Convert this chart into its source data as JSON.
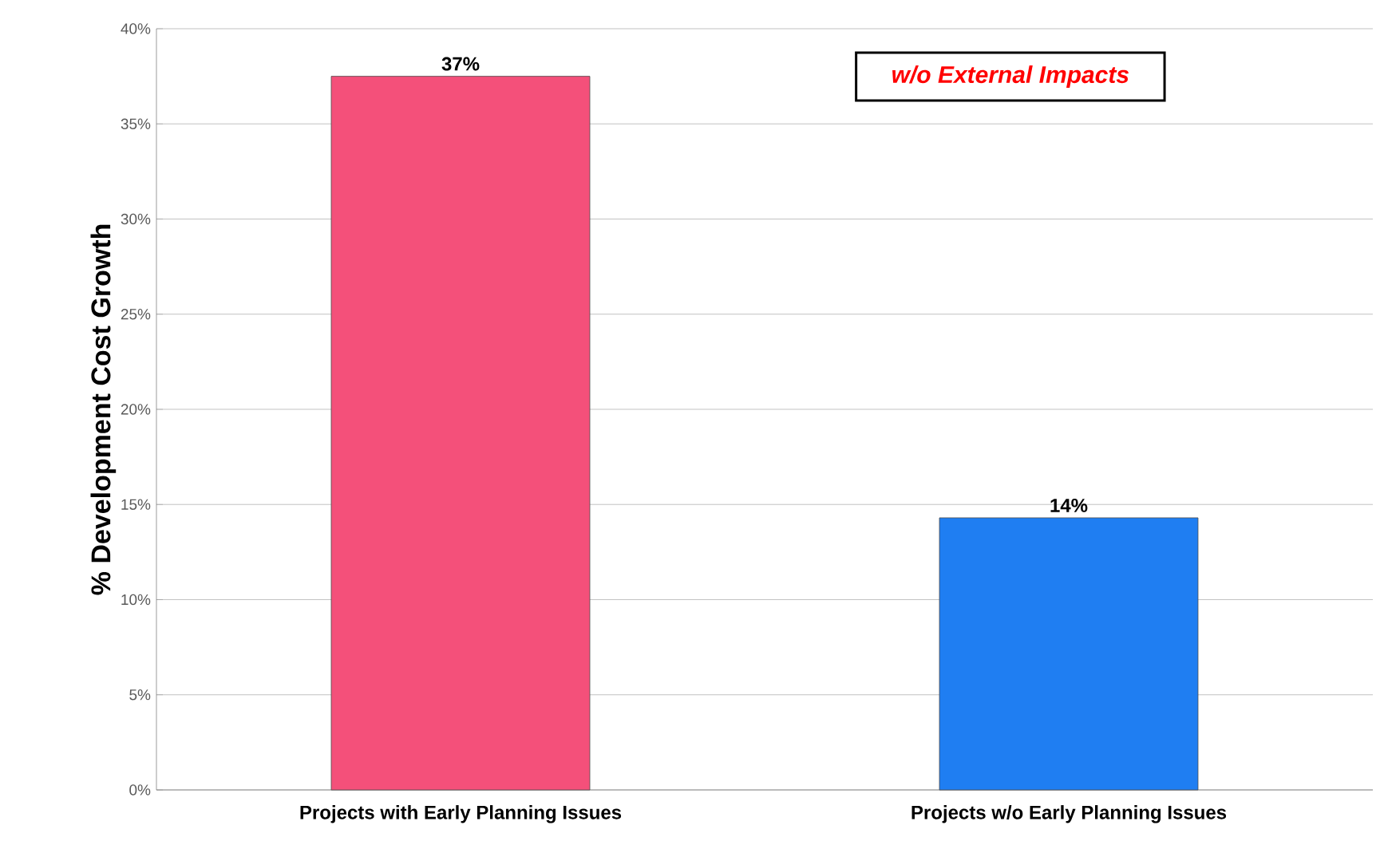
{
  "chart_data": {
    "type": "bar",
    "ylabel": "% Development Cost Growth",
    "categories": [
      "Projects with Early Planning Issues",
      "Projects w/o Early Planning Issues"
    ],
    "values": [
      37.5,
      14.3
    ],
    "value_labels": [
      "37%",
      "14%"
    ],
    "colors": [
      "#f4507a",
      "#1f7ef2"
    ],
    "ylim": [
      0,
      40
    ],
    "yticks": [
      {
        "value": 0,
        "label": "0%"
      },
      {
        "value": 5,
        "label": "5%"
      },
      {
        "value": 10,
        "label": "10%"
      },
      {
        "value": 15,
        "label": "15%"
      },
      {
        "value": 20,
        "label": "20%"
      },
      {
        "value": 25,
        "label": "25%"
      },
      {
        "value": 30,
        "label": "30%"
      },
      {
        "value": 35,
        "label": "35%"
      },
      {
        "value": 40,
        "label": "40%"
      }
    ],
    "grid": "y",
    "annotations": [
      "w/o External Impacts"
    ]
  }
}
